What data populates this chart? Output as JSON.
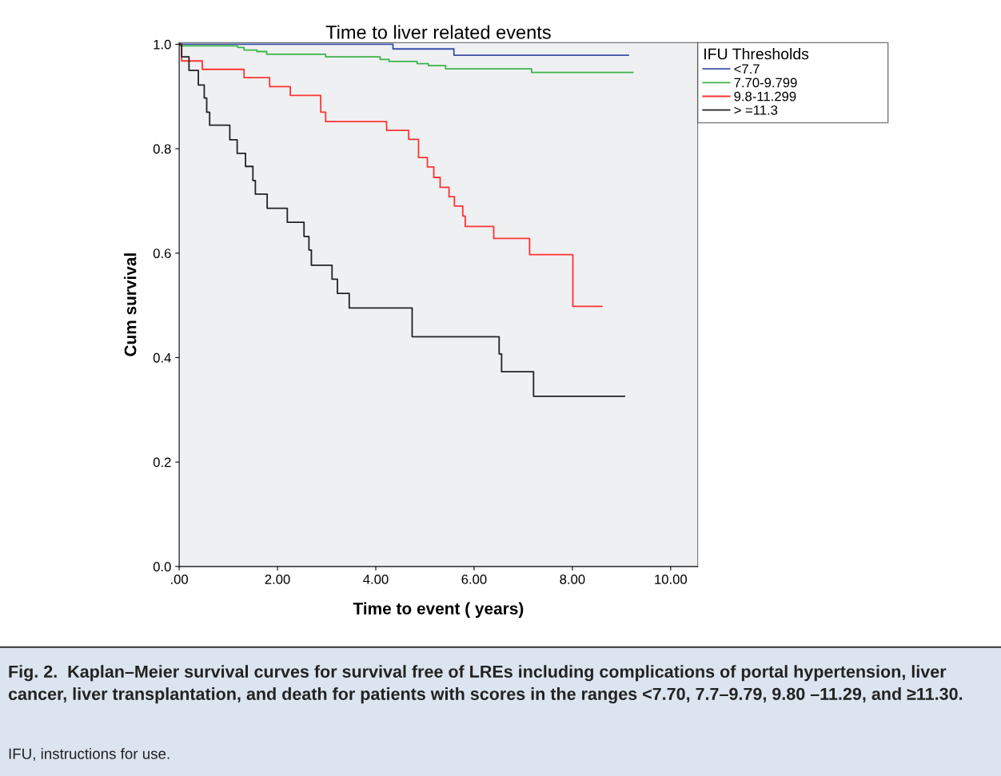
{
  "chart_data": {
    "type": "step",
    "title": "Time to liver related events",
    "xlabel": "Time to event ( years)",
    "ylabel": "Cum survival",
    "legend_title": "IFU Thresholds",
    "annotations": [
      "Fig. 2.  Kaplan–Meier survival curves for survival free of LREs including complications of portal hypertension, liver cancer, liver transplantation, and death for patients with scores in the ranges <7.70, 7.7–9.79, 9.80 –11.29, and ≥11.30.",
      "IFU, instructions for use."
    ],
    "xlim": [
      0,
      10.55
    ],
    "ylim": [
      0,
      1.003
    ],
    "xticks": [
      {
        "value": 0,
        "label": ".00"
      },
      {
        "value": 2,
        "label": "2.00"
      },
      {
        "value": 4,
        "label": "4.00"
      },
      {
        "value": 6,
        "label": "6.00"
      },
      {
        "value": 8,
        "label": "8.00"
      },
      {
        "value": 10,
        "label": "10.00"
      }
    ],
    "yticks": [
      {
        "value": 0,
        "label": "0.0"
      },
      {
        "value": 0.2,
        "label": "0.2"
      },
      {
        "value": 0.4,
        "label": "0.4"
      },
      {
        "value": 0.6,
        "label": "0.6"
      },
      {
        "value": 0.8,
        "label": "0.8"
      },
      {
        "value": 1.0,
        "label": "1.0"
      }
    ],
    "grid": false,
    "legend": "right",
    "marker": "none",
    "line_style": "solid",
    "series": [
      {
        "name": "<7.7",
        "color": "#3b4fa8",
        "x": [
          0,
          4.35,
          5.59,
          9.14
        ],
        "values": [
          1.0,
          0.991,
          0.979,
          0.979
        ]
      },
      {
        "name": "7.70-9.799",
        "color": "#3cb44a",
        "x": [
          0,
          1.19,
          1.32,
          1.58,
          1.78,
          2.98,
          4.09,
          4.27,
          4.84,
          5.07,
          5.42,
          7.17,
          9.23
        ],
        "values": [
          0.997,
          0.994,
          0.989,
          0.986,
          0.981,
          0.976,
          0.971,
          0.967,
          0.963,
          0.959,
          0.953,
          0.946,
          0.946
        ]
      },
      {
        "name": "9.8-11.299",
        "color": "#ff3333",
        "x": [
          0,
          0.05,
          0.47,
          1.32,
          1.84,
          2.26,
          2.88,
          2.98,
          4.22,
          4.67,
          4.87,
          5.05,
          5.18,
          5.31,
          5.49,
          5.6,
          5.77,
          5.82,
          6.4,
          7.13,
          8.01,
          8.6
        ],
        "values": [
          1.0,
          0.968,
          0.952,
          0.936,
          0.919,
          0.902,
          0.87,
          0.852,
          0.835,
          0.818,
          0.783,
          0.765,
          0.745,
          0.726,
          0.708,
          0.69,
          0.671,
          0.651,
          0.628,
          0.597,
          0.498,
          0.498
        ]
      },
      {
        "name": "> =11.3",
        "color": "#222222",
        "x": [
          0,
          0.05,
          0.2,
          0.39,
          0.51,
          0.56,
          0.62,
          1.03,
          1.18,
          1.35,
          1.5,
          1.55,
          1.79,
          2.2,
          2.54,
          2.64,
          2.69,
          3.11,
          3.22,
          3.46,
          4.74,
          6.51,
          6.56,
          7.21,
          9.06
        ],
        "values": [
          1.0,
          0.976,
          0.95,
          0.922,
          0.897,
          0.87,
          0.845,
          0.817,
          0.791,
          0.766,
          0.739,
          0.713,
          0.686,
          0.659,
          0.632,
          0.606,
          0.577,
          0.55,
          0.523,
          0.495,
          0.44,
          0.407,
          0.373,
          0.326,
          0.326
        ]
      }
    ]
  }
}
